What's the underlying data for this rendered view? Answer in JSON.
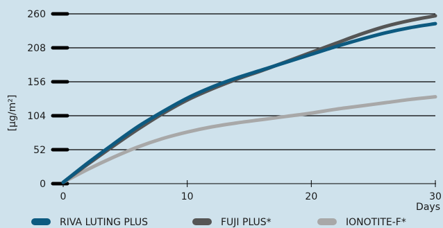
{
  "chart_data": {
    "type": "line",
    "ylabel": "[µg/m²]",
    "xlabel": "Days",
    "xlim": [
      0,
      30
    ],
    "ylim": [
      0,
      260
    ],
    "xticks": [
      0,
      10,
      20,
      30
    ],
    "yticks": [
      0,
      52,
      104,
      156,
      208,
      260
    ],
    "grid": true,
    "legend_position": "bottom",
    "series": [
      {
        "name": "RIVA LUTING PLUS",
        "color": "#0d5a80",
        "x": [
          0,
          2,
          4,
          6,
          8,
          10,
          12,
          14,
          16,
          18,
          20,
          22,
          24,
          26,
          28,
          30
        ],
        "y": [
          2,
          32,
          60,
          87,
          110,
          131,
          148,
          162,
          174,
          186,
          198,
          210,
          221,
          231,
          239,
          245
        ]
      },
      {
        "name": "FUJI PLUS*",
        "color": "#555555",
        "x": [
          0,
          2,
          4,
          6,
          8,
          10,
          12,
          14,
          16,
          18,
          20,
          22,
          24,
          26,
          28,
          30
        ],
        "y": [
          2,
          30,
          57,
          83,
          107,
          128,
          145,
          160,
          173,
          187,
          201,
          215,
          229,
          241,
          250,
          257
        ]
      },
      {
        "name": "IONOTITE-F*",
        "color": "#a8a8a8",
        "x": [
          0,
          2,
          4,
          6,
          8,
          10,
          12,
          14,
          16,
          18,
          20,
          22,
          24,
          26,
          28,
          30
        ],
        "y": [
          2,
          22,
          40,
          56,
          69,
          79,
          87,
          93,
          98,
          103,
          108,
          114,
          119,
          124,
          129,
          133
        ]
      }
    ]
  }
}
